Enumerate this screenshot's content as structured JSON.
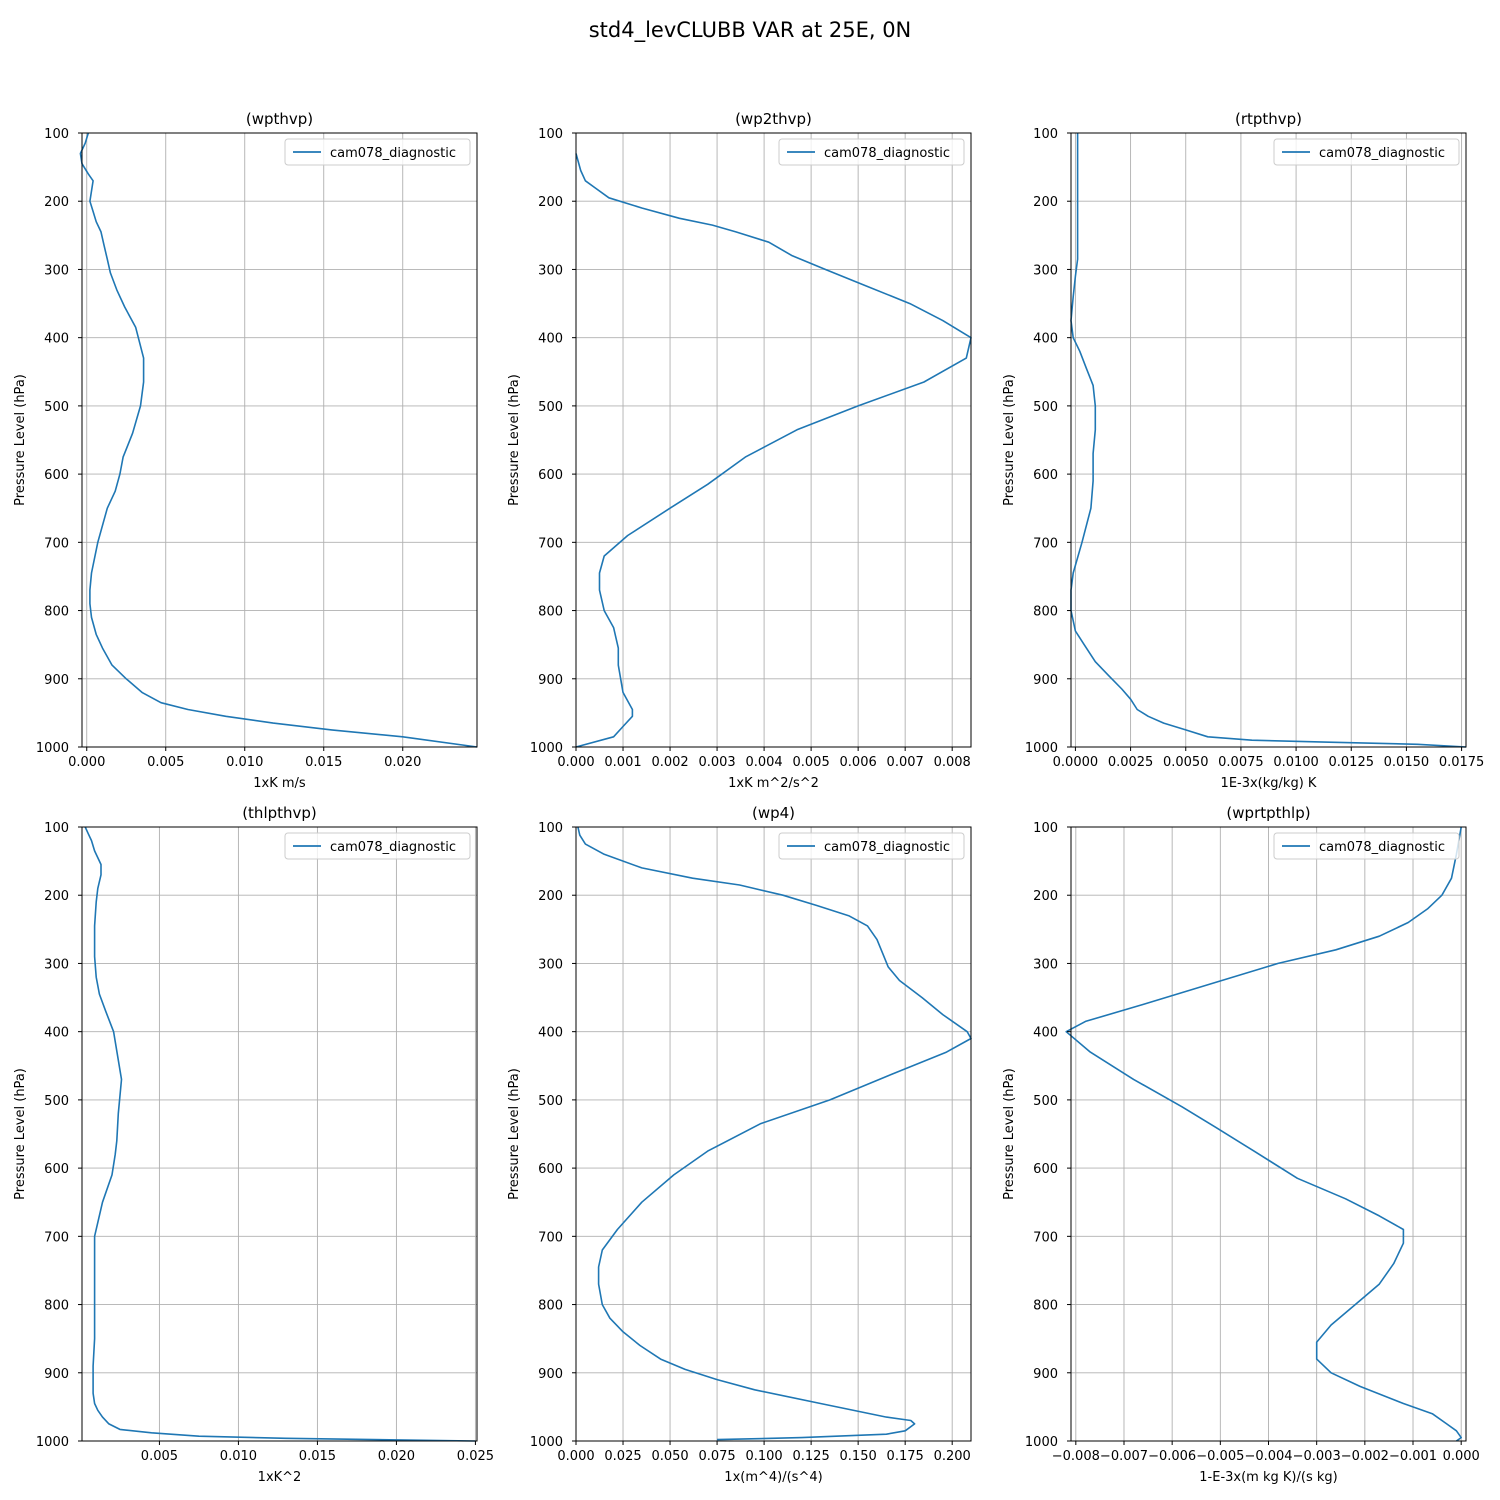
{
  "figure": {
    "title": "std4_levCLUBB VAR at 25E, 0N"
  },
  "chart_data": [
    {
      "type": "line",
      "title": "(wpthvp)",
      "xlabel": "1xK m/s",
      "ylabel": "Pressure Level (hPa)",
      "xlim": [
        -0.0003,
        0.0247
      ],
      "ylim": [
        1000,
        100
      ],
      "xticks": [
        0.0,
        0.005,
        0.01,
        0.015,
        0.02
      ],
      "xtick_labels": [
        "0.000",
        "0.005",
        "0.010",
        "0.015",
        "0.020"
      ],
      "yticks": [
        100,
        200,
        300,
        400,
        500,
        600,
        700,
        800,
        900,
        1000
      ],
      "ytick_labels": [
        "100",
        "200",
        "300",
        "400",
        "500",
        "600",
        "700",
        "800",
        "900",
        "1000"
      ],
      "grid": true,
      "legend": "upper right",
      "series": [
        {
          "name": "cam078_diagnostic",
          "color": "#1f77b4",
          "x": [
            0.0001,
            -0.0001,
            -0.0004,
            -0.0003,
            0.0001,
            0.0004,
            0.0003,
            0.0002,
            0.0004,
            0.0006,
            0.0009,
            0.0011,
            0.0013,
            0.0015,
            0.0019,
            0.0024,
            0.0031,
            0.0036,
            0.0036,
            0.0034,
            0.0029,
            0.0023,
            0.0021,
            0.0018,
            0.0013,
            0.0007,
            0.0003,
            0.0002,
            0.0002,
            0.0003,
            0.0006,
            0.001,
            0.0016,
            0.0025,
            0.0035,
            0.0047,
            0.0064,
            0.0088,
            0.0118,
            0.0155,
            0.02,
            0.0247
          ],
          "y": [
            100,
            115,
            130,
            145,
            160,
            170,
            185,
            200,
            215,
            230,
            245,
            265,
            285,
            305,
            330,
            355,
            385,
            430,
            465,
            500,
            540,
            575,
            600,
            625,
            650,
            700,
            745,
            770,
            790,
            810,
            835,
            855,
            880,
            900,
            920,
            935,
            945,
            955,
            965,
            975,
            985,
            1000
          ]
        }
      ]
    },
    {
      "type": "line",
      "title": "(wp2thvp)",
      "xlabel": "1xK m^2/s^2",
      "ylabel": "Pressure Level (hPa)",
      "xlim": [
        0.0,
        0.0084
      ],
      "ylim": [
        1000,
        100
      ],
      "xticks": [
        0,
        0.001,
        0.002,
        0.003,
        0.004,
        0.005,
        0.006,
        0.007,
        0.008
      ],
      "xtick_labels": [
        "0.000",
        "0.001",
        "0.002",
        "0.003",
        "0.004",
        "0.005",
        "0.006",
        "0.007",
        "0.008"
      ],
      "yticks": [
        100,
        200,
        300,
        400,
        500,
        600,
        700,
        800,
        900,
        1000
      ],
      "ytick_labels": [
        "100",
        "200",
        "300",
        "400",
        "500",
        "600",
        "700",
        "800",
        "900",
        "1000"
      ],
      "grid": true,
      "legend": "upper right",
      "series": [
        {
          "name": "cam078_diagnostic",
          "color": "#1f77b4",
          "x": [
            0.0,
            0.0001,
            0.0002,
            0.0004,
            0.0007,
            0.0014,
            0.0022,
            0.0029,
            0.0034,
            0.0041,
            0.0046,
            0.0053,
            0.0062,
            0.0071,
            0.0078,
            0.0084,
            0.0083,
            0.0074,
            0.006,
            0.0047,
            0.0036,
            0.0028,
            0.002,
            0.0011,
            0.0006,
            0.0005,
            0.0005,
            0.0006,
            0.0008,
            0.0009,
            0.0009,
            0.001,
            0.0012,
            0.0012,
            0.001,
            0.0008,
            0.0,
            0.0
          ],
          "y": [
            130,
            155,
            170,
            180,
            195,
            210,
            225,
            235,
            245,
            260,
            280,
            300,
            325,
            350,
            375,
            400,
            430,
            465,
            500,
            535,
            575,
            615,
            650,
            690,
            720,
            745,
            770,
            800,
            825,
            855,
            880,
            920,
            945,
            955,
            970,
            985,
            1000,
            1000
          ]
        }
      ]
    },
    {
      "type": "line",
      "title": "(rtpthvp)",
      "xlabel": "1E-3x(kg/kg) K",
      "ylabel": "Pressure Level (hPa)",
      "xlim": [
        -0.0002,
        0.0177
      ],
      "ylim": [
        1000,
        100
      ],
      "xticks": [
        0,
        0.0025,
        0.005,
        0.0075,
        0.01,
        0.0125,
        0.015,
        0.0175
      ],
      "xtick_labels": [
        "0.0000",
        "0.0025",
        "0.0050",
        "0.0075",
        "0.0100",
        "0.0125",
        "0.0150",
        "0.0175"
      ],
      "yticks": [
        100,
        200,
        300,
        400,
        500,
        600,
        700,
        800,
        900,
        1000
      ],
      "ytick_labels": [
        "100",
        "200",
        "300",
        "400",
        "500",
        "600",
        "700",
        "800",
        "900",
        "1000"
      ],
      "grid": true,
      "legend": "upper right",
      "series": [
        {
          "name": "cam078_diagnostic",
          "color": "#1f77b4",
          "x": [
            0.0001,
            0.0001,
            0.0001,
            0.0001,
            0.0001,
            0.0001,
            0.0,
            -0.0001,
            -0.0002,
            -0.0001,
            0.0002,
            0.0005,
            0.0008,
            0.0009,
            0.0009,
            0.0008,
            0.0008,
            0.0007,
            0.0003,
            -0.0001,
            -0.0002,
            -0.0002,
            0.0,
            0.0004,
            0.0009,
            0.0015,
            0.0021,
            0.0025,
            0.0028,
            0.0033,
            0.004,
            0.005,
            0.006,
            0.008,
            0.0115,
            0.0155,
            0.0177
          ],
          "y": [
            100,
            150,
            200,
            240,
            265,
            285,
            310,
            340,
            375,
            400,
            420,
            445,
            470,
            500,
            535,
            570,
            610,
            650,
            700,
            745,
            770,
            800,
            830,
            850,
            875,
            895,
            915,
            930,
            945,
            955,
            965,
            975,
            985,
            990,
            993,
            996,
            1000
          ]
        }
      ]
    },
    {
      "type": "line",
      "title": "(thlpthvp)",
      "xlabel": "1xK^2",
      "ylabel": "Pressure Level (hPa)",
      "xlim": [
        0.0001,
        0.0251
      ],
      "ylim": [
        1000,
        100
      ],
      "xticks": [
        0.005,
        0.01,
        0.015,
        0.02,
        0.025
      ],
      "xtick_labels": [
        "0.005",
        "0.010",
        "0.015",
        "0.020",
        "0.025"
      ],
      "yticks": [
        100,
        200,
        300,
        400,
        500,
        600,
        700,
        800,
        900,
        1000
      ],
      "ytick_labels": [
        "100",
        "200",
        "300",
        "400",
        "500",
        "600",
        "700",
        "800",
        "900",
        "1000"
      ],
      "grid": true,
      "legend": "upper right",
      "series": [
        {
          "name": "cam078_diagnostic",
          "color": "#1f77b4",
          "x": [
            0.0003,
            0.0005,
            0.0007,
            0.0009,
            0.0013,
            0.0013,
            0.0011,
            0.001,
            0.0009,
            0.0009,
            0.0009,
            0.001,
            0.0012,
            0.0016,
            0.0021,
            0.0026,
            0.0024,
            0.0023,
            0.0022,
            0.002,
            0.0014,
            0.0009,
            0.0009,
            0.0009,
            0.0009,
            0.0009,
            0.0008,
            0.0008,
            0.0008,
            0.0009,
            0.0011,
            0.0014,
            0.0018,
            0.0025,
            0.0045,
            0.0075,
            0.013,
            0.025
          ],
          "y": [
            100,
            110,
            120,
            135,
            155,
            170,
            190,
            210,
            245,
            270,
            290,
            320,
            345,
            370,
            400,
            470,
            520,
            560,
            580,
            610,
            650,
            700,
            740,
            770,
            800,
            850,
            890,
            910,
            930,
            945,
            955,
            965,
            975,
            983,
            988,
            993,
            996,
            1000
          ]
        }
      ]
    },
    {
      "type": "line",
      "title": "(wp4)",
      "xlabel": "1x(m^4)/(s^4)",
      "ylabel": "Pressure Level (hPa)",
      "xlim": [
        0.0,
        0.21
      ],
      "ylim": [
        1000,
        100
      ],
      "xticks": [
        0,
        0.025,
        0.05,
        0.075,
        0.1,
        0.125,
        0.15,
        0.175,
        0.2
      ],
      "xtick_labels": [
        "0.000",
        "0.025",
        "0.050",
        "0.075",
        "0.100",
        "0.125",
        "0.150",
        "0.175",
        "0.200"
      ],
      "yticks": [
        100,
        200,
        300,
        400,
        500,
        600,
        700,
        800,
        900,
        1000
      ],
      "ytick_labels": [
        "100",
        "200",
        "300",
        "400",
        "500",
        "600",
        "700",
        "800",
        "900",
        "1000"
      ],
      "grid": true,
      "legend": "upper right",
      "series": [
        {
          "name": "cam078_diagnostic",
          "color": "#1f77b4",
          "x": [
            0.001,
            0.002,
            0.005,
            0.015,
            0.035,
            0.062,
            0.087,
            0.11,
            0.128,
            0.145,
            0.155,
            0.16,
            0.163,
            0.166,
            0.172,
            0.184,
            0.195,
            0.208,
            0.21,
            0.197,
            0.17,
            0.135,
            0.098,
            0.07,
            0.052,
            0.035,
            0.022,
            0.014,
            0.012,
            0.012,
            0.014,
            0.018,
            0.025,
            0.034,
            0.045,
            0.058,
            0.075,
            0.095,
            0.13,
            0.165,
            0.178,
            0.18,
            0.175,
            0.165,
            0.12,
            0.075
          ],
          "y": [
            100,
            112,
            125,
            140,
            160,
            175,
            185,
            200,
            215,
            230,
            245,
            265,
            285,
            305,
            325,
            350,
            375,
            400,
            410,
            430,
            460,
            500,
            535,
            575,
            610,
            650,
            690,
            720,
            745,
            770,
            800,
            820,
            840,
            860,
            880,
            895,
            910,
            925,
            945,
            965,
            970,
            975,
            985,
            990,
            995,
            998
          ]
        }
      ]
    },
    {
      "type": "line",
      "title": "(wprtpthlp)",
      "xlabel": "1-E-3x(m kg K)/(s kg)",
      "ylabel": "Pressure Level (hPa)",
      "xlim": [
        -0.0081,
        0.0001
      ],
      "ylim": [
        1000,
        100
      ],
      "xticks": [
        -0.008,
        -0.007,
        -0.006,
        -0.005,
        -0.004,
        -0.003,
        -0.002,
        -0.001,
        0.0
      ],
      "xtick_labels": [
        "−0.008",
        "−0.007",
        "−0.006",
        "−0.005",
        "−0.004",
        "−0.003",
        "−0.002",
        "−0.001",
        "0.000"
      ],
      "yticks": [
        100,
        200,
        300,
        400,
        500,
        600,
        700,
        800,
        900,
        1000
      ],
      "ytick_labels": [
        "100",
        "200",
        "300",
        "400",
        "500",
        "600",
        "700",
        "800",
        "900",
        "1000"
      ],
      "grid": true,
      "legend": "upper right",
      "series": [
        {
          "name": "cam078_diagnostic",
          "color": "#1f77b4",
          "x": [
            0.0,
            -0.0001,
            -0.0002,
            -0.0004,
            -0.0007,
            -0.0011,
            -0.0017,
            -0.0026,
            -0.0038,
            -0.0052,
            -0.0066,
            -0.0078,
            -0.0082,
            -0.0077,
            -0.0068,
            -0.0058,
            -0.0051,
            -0.0043,
            -0.0034,
            -0.0024,
            -0.0017,
            -0.0012,
            -0.0012,
            -0.0014,
            -0.0017,
            -0.0022,
            -0.0027,
            -0.003,
            -0.003,
            -0.0027,
            -0.0021,
            -0.0012,
            -0.0006,
            -0.0003,
            -0.0001,
            0.0,
            -0.0001
          ],
          "y": [
            100,
            140,
            175,
            200,
            220,
            240,
            260,
            280,
            300,
            330,
            360,
            385,
            400,
            430,
            470,
            510,
            540,
            575,
            615,
            645,
            670,
            690,
            710,
            740,
            770,
            800,
            830,
            855,
            880,
            900,
            920,
            945,
            960,
            975,
            985,
            995,
            1000
          ]
        }
      ]
    }
  ]
}
